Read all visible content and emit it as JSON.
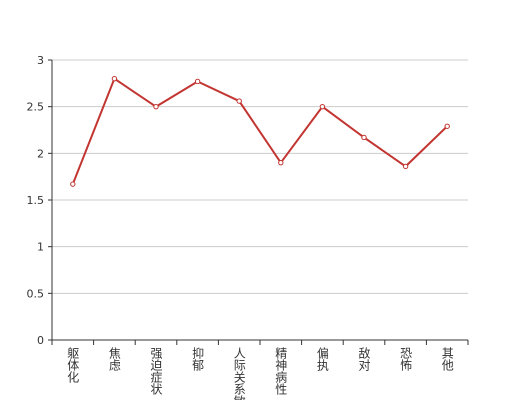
{
  "chart_data": {
    "type": "line",
    "categories": [
      "躯体化",
      "焦虑",
      "强迫症状",
      "抑郁",
      "人际关系敏感",
      "精神病性",
      "偏执",
      "敌对",
      "恐怖",
      "其他"
    ],
    "series": [
      {
        "color": "#c23531",
        "values": [
          1.67,
          2.8,
          2.5,
          2.77,
          2.56,
          1.9,
          2.5,
          2.17,
          1.86,
          2.29
        ]
      }
    ],
    "ylim": [
      0,
      3
    ],
    "yticks": [
      0,
      0.5,
      1,
      1.5,
      2,
      2.5,
      3
    ],
    "grid": true
  }
}
